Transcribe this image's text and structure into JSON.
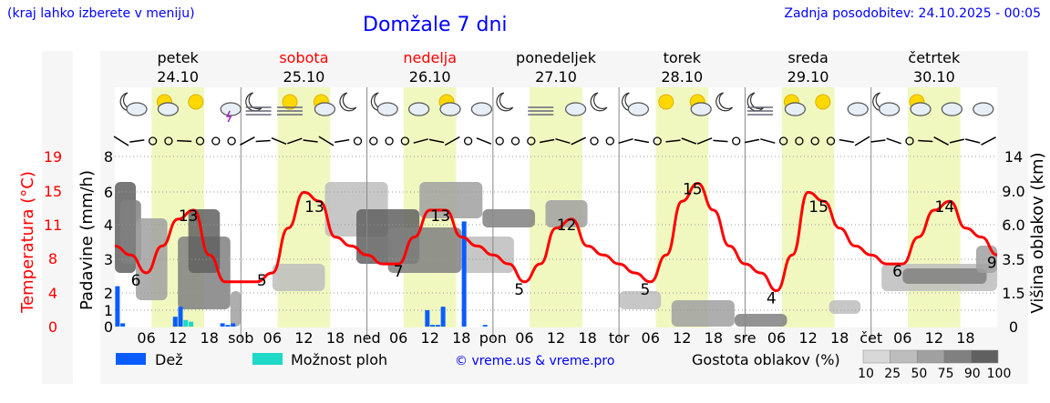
{
  "header": {
    "region_hint": "(kraj lahko izberete v meniju)",
    "title": "Domžale 7 dni",
    "updated": "Zadnja posodobitev: 24.10.2025 - 00:05"
  },
  "days": [
    {
      "name": "petek",
      "date": "24.10",
      "weekend": false
    },
    {
      "name": "sobota",
      "date": "25.10",
      "weekend": true
    },
    {
      "name": "nedelja",
      "date": "26.10",
      "weekend": true
    },
    {
      "name": "ponedeljek",
      "date": "27.10",
      "weekend": false
    },
    {
      "name": "torek",
      "date": "28.10",
      "weekend": false
    },
    {
      "name": "sreda",
      "date": "29.10",
      "weekend": false
    },
    {
      "name": "četrtek",
      "date": "30.10",
      "weekend": false
    }
  ],
  "x_tick_labels": [
    "06",
    "12",
    "18",
    "sob",
    "06",
    "12",
    "18",
    "ned",
    "06",
    "12",
    "18",
    "pon",
    "06",
    "12",
    "18",
    "tor",
    "06",
    "12",
    "18",
    "sre",
    "06",
    "12",
    "18",
    "čet",
    "06",
    "12",
    "18"
  ],
  "colors": {
    "text_blue": "#0000ff",
    "axis_red": "#ff0000",
    "weekend_red": "#ff0000",
    "temp_line": "#ff0000",
    "daylight_band": "#f0f8c0",
    "rain_bar": "#0a5cff",
    "shower_bar": "#1ed8c8"
  },
  "axes": {
    "temp_label": "Temperatura (°C)",
    "temp_ticks": [
      "19",
      "15",
      "11",
      "8",
      "4",
      "0"
    ],
    "precip_label": "Padavine (mm/h)",
    "precip_ticks": [
      "8",
      "6",
      "4",
      "3",
      "2",
      "1",
      "0"
    ],
    "cloud_label": "Višina oblakov (km)",
    "cloud_ticks": [
      "14",
      "9.0",
      "6.0",
      "3.5",
      "1.5",
      "0"
    ]
  },
  "legend": {
    "rain": "Dež",
    "showers": "Možnost ploh",
    "copyright": "© vreme.us & vreme.pro",
    "cloud_density": "Gostota oblakov (%)",
    "density_levels": [
      "10",
      "25",
      "50",
      "75",
      "90",
      "100"
    ],
    "density_colors": [
      "#d8d8d8",
      "#bdbdbd",
      "#a0a0a0",
      "#808080",
      "#606060",
      "#404040"
    ]
  },
  "chart_data": {
    "type": "line",
    "title": "Domžale 7 dni",
    "ylabel": "Temperatura (°C)",
    "y2label": "Padavine (mm/h)",
    "y3label": "Višina oblakov (km)",
    "temperature": {
      "hours": [
        0,
        3,
        6,
        9,
        12,
        15,
        18,
        21,
        24,
        27,
        30,
        33,
        36,
        39,
        42,
        45,
        48,
        51,
        54,
        57,
        60,
        63,
        66,
        69,
        72,
        75,
        78,
        81,
        84,
        87,
        90,
        93,
        96,
        99,
        102,
        105,
        108,
        111,
        114,
        117,
        120,
        123,
        126,
        129,
        132,
        135,
        138,
        141,
        144,
        147,
        150,
        153,
        156,
        159,
        162,
        165,
        168
      ],
      "values": [
        9,
        8,
        6,
        9,
        12,
        13,
        8,
        5,
        5,
        5,
        6,
        11,
        15,
        14,
        10,
        9,
        8,
        7,
        7,
        10,
        13,
        13,
        10,
        9,
        8,
        7,
        5,
        7,
        11,
        12,
        9,
        8,
        7,
        6,
        5,
        8,
        14,
        16,
        13,
        9,
        7,
        6,
        4,
        8,
        15,
        14,
        11,
        9,
        8,
        7,
        7,
        10,
        13,
        14,
        11,
        10,
        8
      ],
      "labels": [
        {
          "hour": 4,
          "value": "6"
        },
        {
          "hour": 14,
          "value": "13"
        },
        {
          "hour": 28,
          "value": "5"
        },
        {
          "hour": 38,
          "value": "13"
        },
        {
          "hour": 54,
          "value": "7"
        },
        {
          "hour": 62,
          "value": "13"
        },
        {
          "hour": 77,
          "value": "5"
        },
        {
          "hour": 86,
          "value": "12"
        },
        {
          "hour": 101,
          "value": "5"
        },
        {
          "hour": 110,
          "value": "15"
        },
        {
          "hour": 125,
          "value": "4"
        },
        {
          "hour": 134,
          "value": "15"
        },
        {
          "hour": 149,
          "value": "6"
        },
        {
          "hour": 158,
          "value": "14"
        },
        {
          "hour": 167,
          "value": "9"
        }
      ]
    },
    "precipitation": [
      {
        "hour": 0.5,
        "mm": 2.2,
        "kind": "rain"
      },
      {
        "hour": 1.5,
        "mm": 0.2,
        "kind": "rain"
      },
      {
        "hour": 11.5,
        "mm": 0.6,
        "kind": "rain"
      },
      {
        "hour": 12.5,
        "mm": 1.2,
        "kind": "rain"
      },
      {
        "hour": 13.5,
        "mm": 0.4,
        "kind": "shower"
      },
      {
        "hour": 14.5,
        "mm": 0.3,
        "kind": "shower"
      },
      {
        "hour": 20.5,
        "mm": 0.2,
        "kind": "rain"
      },
      {
        "hour": 21.5,
        "mm": 0.1,
        "kind": "rain"
      },
      {
        "hour": 22.5,
        "mm": 0.2,
        "kind": "rain"
      },
      {
        "hour": 59.5,
        "mm": 1.0,
        "kind": "rain"
      },
      {
        "hour": 60.5,
        "mm": 0.1,
        "kind": "rain"
      },
      {
        "hour": 61.5,
        "mm": 0.1,
        "kind": "rain"
      },
      {
        "hour": 62.5,
        "mm": 1.2,
        "kind": "rain"
      },
      {
        "hour": 66.5,
        "mm": 4.2,
        "kind": "rain"
      },
      {
        "hour": 70.5,
        "mm": 0.1,
        "kind": "rain"
      }
    ]
  }
}
